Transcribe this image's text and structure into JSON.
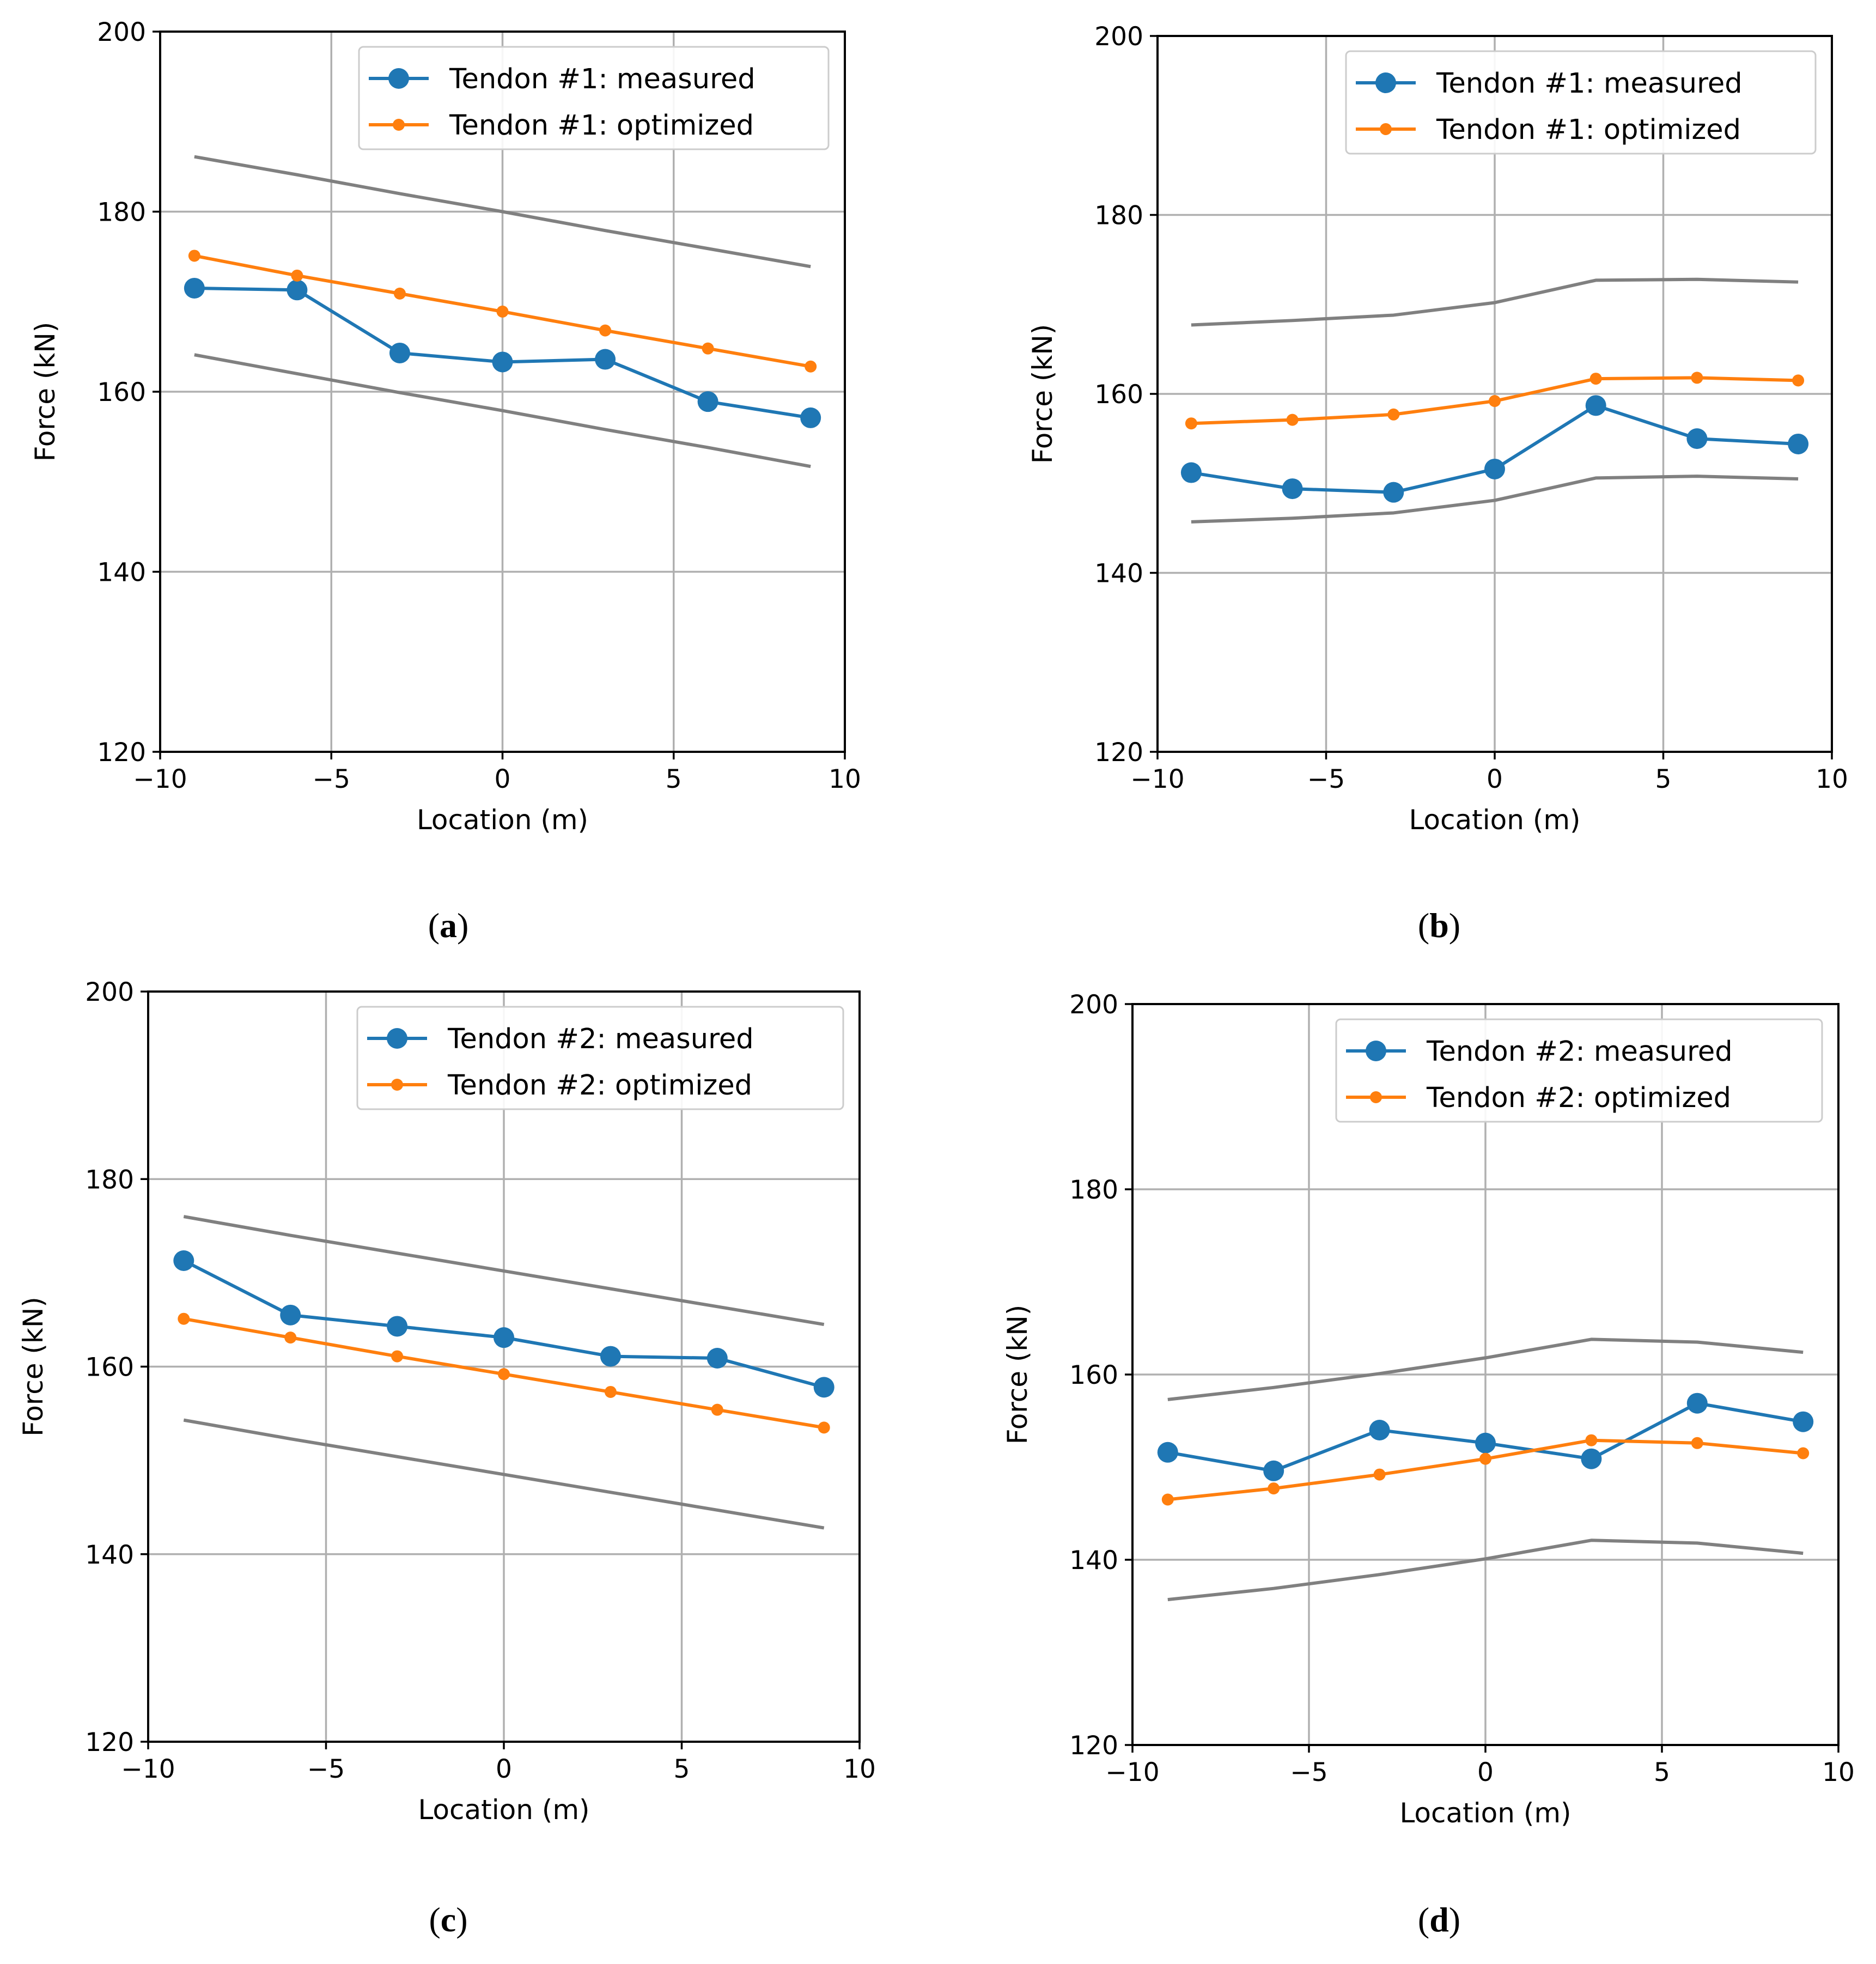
{
  "colors": {
    "measured": "#1f77b4",
    "optimized": "#ff7f0e",
    "bounds": "#808080",
    "grid": "#b0b0b0",
    "axes": "#000000"
  },
  "chart_data": [
    {
      "id": "a",
      "caption": {
        "open": "(",
        "letter": "a",
        "close": ")"
      },
      "type": "line",
      "xlabel": "Location (m)",
      "ylabel": "Force (kN)",
      "xlim": [
        -10,
        10
      ],
      "ylim": [
        120,
        200
      ],
      "xticks": [
        -10,
        -5,
        0,
        5,
        10
      ],
      "xtick_labels": [
        "−10",
        "−5",
        "0",
        "5",
        "10"
      ],
      "yticks": [
        120,
        140,
        160,
        180,
        200
      ],
      "ytick_labels": [
        "120",
        "140",
        "160",
        "180",
        "200"
      ],
      "grid": true,
      "legend_position": "upper-right",
      "x": [
        -9,
        -6,
        -3,
        0,
        3,
        6,
        9
      ],
      "series": [
        {
          "name": "Tendon #1: measured",
          "role": "measured",
          "values": [
            171.5,
            171.3,
            164.3,
            163.3,
            163.6,
            158.9,
            157.1
          ]
        },
        {
          "name": "Tendon #1: optimized",
          "role": "optimized",
          "values": [
            175.1,
            172.9,
            170.9,
            168.9,
            166.8,
            164.8,
            162.8
          ]
        }
      ],
      "bounds": [
        {
          "name": "upper bound",
          "values": [
            186.1,
            184.1,
            182.0,
            180.0,
            177.9,
            175.9,
            173.9
          ]
        },
        {
          "name": "lower bound",
          "values": [
            164.1,
            162.0,
            159.9,
            157.9,
            155.8,
            153.8,
            151.7
          ]
        }
      ]
    },
    {
      "id": "b",
      "caption": {
        "open": "(",
        "letter": "b",
        "close": ")"
      },
      "type": "line",
      "xlabel": "Location (m)",
      "ylabel": "Force (kN)",
      "xlim": [
        -10,
        10
      ],
      "ylim": [
        120,
        200
      ],
      "xticks": [
        -10,
        -5,
        0,
        5,
        10
      ],
      "xtick_labels": [
        "−10",
        "−5",
        "0",
        "5",
        "10"
      ],
      "yticks": [
        120,
        140,
        160,
        180,
        200
      ],
      "ytick_labels": [
        "120",
        "140",
        "160",
        "180",
        "200"
      ],
      "grid": true,
      "legend_position": "upper-right",
      "x": [
        -9,
        -6,
        -3,
        0,
        3,
        6,
        9
      ],
      "series": [
        {
          "name": "Tendon #1: measured",
          "role": "measured",
          "values": [
            151.2,
            149.4,
            149.0,
            151.6,
            158.7,
            155.0,
            154.4
          ]
        },
        {
          "name": "Tendon #1: optimized",
          "role": "optimized",
          "values": [
            156.7,
            157.1,
            157.7,
            159.2,
            161.7,
            161.8,
            161.5
          ]
        }
      ],
      "bounds": [
        {
          "name": "upper bound",
          "values": [
            167.7,
            168.2,
            168.8,
            170.2,
            172.7,
            172.8,
            172.5
          ]
        },
        {
          "name": "lower bound",
          "values": [
            145.7,
            146.1,
            146.7,
            148.1,
            150.6,
            150.8,
            150.5
          ]
        }
      ]
    },
    {
      "id": "c",
      "caption": {
        "open": "(",
        "letter": "c",
        "close": ")"
      },
      "type": "line",
      "xlabel": "Location (m)",
      "ylabel": "Force (kN)",
      "xlim": [
        -10,
        10
      ],
      "ylim": [
        120,
        200
      ],
      "xticks": [
        -10,
        -5,
        0,
        5,
        10
      ],
      "xtick_labels": [
        "−10",
        "−5",
        "0",
        "5",
        "10"
      ],
      "yticks": [
        120,
        140,
        160,
        180,
        200
      ],
      "ytick_labels": [
        "120",
        "140",
        "160",
        "180",
        "200"
      ],
      "grid": true,
      "legend_position": "upper-right",
      "x": [
        -9,
        -6,
        -3,
        0,
        3,
        6,
        9
      ],
      "series": [
        {
          "name": "Tendon #2: measured",
          "role": "measured",
          "values": [
            171.3,
            165.5,
            164.3,
            163.1,
            161.1,
            160.9,
            157.8
          ]
        },
        {
          "name": "Tendon #2: optimized",
          "role": "optimized",
          "values": [
            165.1,
            163.1,
            161.1,
            159.2,
            157.3,
            155.4,
            153.5
          ]
        }
      ],
      "bounds": [
        {
          "name": "upper bound",
          "values": [
            176.0,
            174.0,
            172.1,
            170.2,
            168.3,
            166.4,
            164.5
          ]
        },
        {
          "name": "lower bound",
          "values": [
            154.3,
            152.3,
            150.4,
            148.5,
            146.6,
            144.7,
            142.8
          ]
        }
      ]
    },
    {
      "id": "d",
      "caption": {
        "open": "(",
        "letter": "d",
        "close": ")"
      },
      "type": "line",
      "xlabel": "Location (m)",
      "ylabel": "Force (kN)",
      "xlim": [
        -10,
        10
      ],
      "ylim": [
        120,
        200
      ],
      "xticks": [
        -10,
        -5,
        0,
        5,
        10
      ],
      "xtick_labels": [
        "−10",
        "−5",
        "0",
        "5",
        "10"
      ],
      "yticks": [
        120,
        140,
        160,
        180,
        200
      ],
      "ytick_labels": [
        "120",
        "140",
        "160",
        "180",
        "200"
      ],
      "grid": true,
      "legend_position": "upper-right",
      "x": [
        -9,
        -6,
        -3,
        0,
        3,
        6,
        9
      ],
      "series": [
        {
          "name": "Tendon #2: measured",
          "role": "measured",
          "values": [
            151.6,
            149.6,
            154.0,
            152.6,
            150.9,
            156.9,
            154.9
          ]
        },
        {
          "name": "Tendon #2: optimized",
          "role": "optimized",
          "values": [
            146.5,
            147.7,
            149.2,
            150.9,
            152.9,
            152.6,
            151.5
          ]
        }
      ],
      "bounds": [
        {
          "name": "upper bound",
          "values": [
            157.3,
            158.6,
            160.1,
            161.8,
            163.8,
            163.5,
            162.4
          ]
        },
        {
          "name": "lower bound",
          "values": [
            135.7,
            136.9,
            138.4,
            140.1,
            142.1,
            141.8,
            140.7
          ]
        }
      ]
    }
  ]
}
